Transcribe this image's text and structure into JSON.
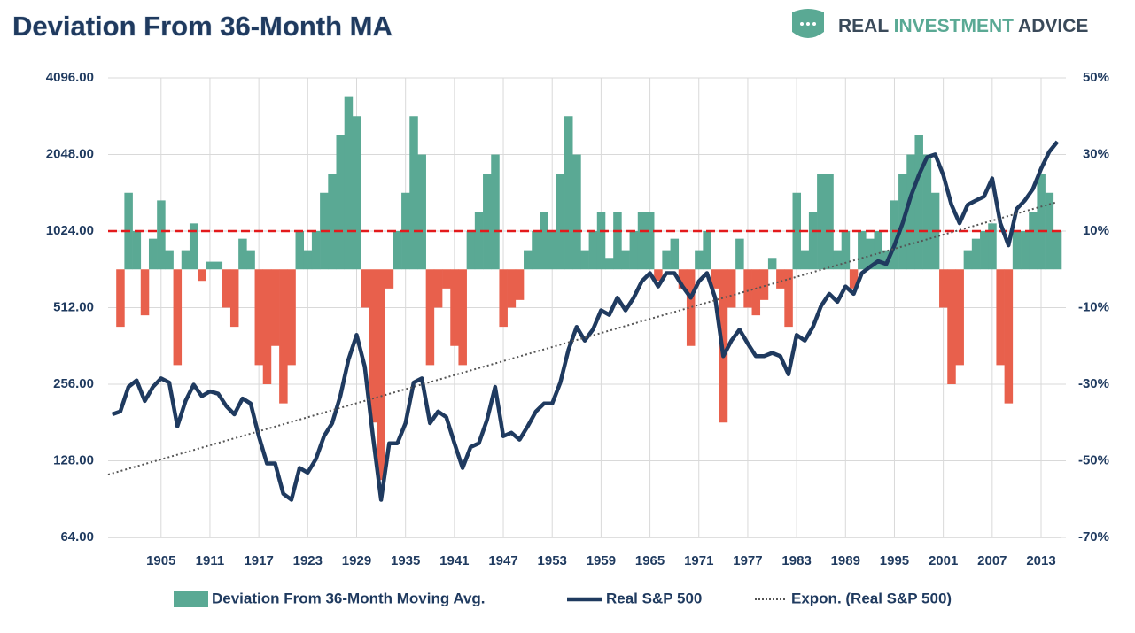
{
  "chart_data": {
    "type": "combo",
    "title": "Deviation From 36-Month MA",
    "brand": [
      "REAL",
      "INVESTMENT",
      "ADVICE"
    ],
    "xlim": [
      1898.5,
      2015.5
    ],
    "xticks": [
      1905,
      1911,
      1917,
      1923,
      1929,
      1935,
      1941,
      1947,
      1953,
      1959,
      1965,
      1971,
      1977,
      1983,
      1989,
      1995,
      2001,
      2007,
      2013
    ],
    "ylim": [
      64,
      4096
    ],
    "log_scale": true,
    "yticks": [
      {
        "value": 64,
        "label": "64.00"
      },
      {
        "value": 128,
        "label": "128.00"
      },
      {
        "value": 256,
        "label": "256.00"
      },
      {
        "value": 512,
        "label": "512.00"
      },
      {
        "value": 1024,
        "label": "1024.00"
      },
      {
        "value": 2048,
        "label": "2048.00"
      },
      {
        "value": 4096,
        "label": "4096.00"
      }
    ],
    "y2lim": [
      -70,
      50
    ],
    "y2ticks": [
      {
        "value": -70,
        "label": "-70%"
      },
      {
        "value": -50,
        "label": "-50%"
      },
      {
        "value": -30,
        "label": "-30%"
      },
      {
        "value": -10,
        "label": "-10%"
      },
      {
        "value": 10,
        "label": "10%"
      },
      {
        "value": 30,
        "label": "30%"
      },
      {
        "value": 50,
        "label": "50%"
      }
    ],
    "grid": true,
    "reference_line": {
      "value": 10,
      "axis": "y2",
      "color": "#e31a1c"
    },
    "x": [
      1899,
      1900,
      1901,
      1902,
      1903,
      1904,
      1905,
      1906,
      1907,
      1908,
      1909,
      1910,
      1911,
      1912,
      1913,
      1914,
      1915,
      1916,
      1917,
      1918,
      1919,
      1920,
      1921,
      1922,
      1923,
      1924,
      1925,
      1926,
      1927,
      1928,
      1929,
      1930,
      1931,
      1932,
      1933,
      1934,
      1935,
      1936,
      1937,
      1938,
      1939,
      1940,
      1941,
      1942,
      1943,
      1944,
      1945,
      1946,
      1947,
      1948,
      1949,
      1950,
      1951,
      1952,
      1953,
      1954,
      1955,
      1956,
      1957,
      1958,
      1959,
      1960,
      1961,
      1962,
      1963,
      1964,
      1965,
      1966,
      1967,
      1968,
      1969,
      1970,
      1971,
      1972,
      1973,
      1974,
      1975,
      1976,
      1977,
      1978,
      1979,
      1980,
      1981,
      1982,
      1983,
      1984,
      1985,
      1986,
      1987,
      1988,
      1989,
      1990,
      1991,
      1992,
      1993,
      1994,
      1995,
      1996,
      1997,
      1998,
      1999,
      2000,
      2001,
      2002,
      2003,
      2004,
      2005,
      2006,
      2007,
      2008,
      2009,
      2010,
      2011,
      2012,
      2013,
      2014,
      2015
    ],
    "series": [
      {
        "name": "Deviation From 36-Month Moving Avg.",
        "type": "bar",
        "axis": "y2",
        "color": "#5aa994",
        "negative_color": "#e8604c",
        "values": [
          0,
          -15,
          20,
          10,
          -12,
          8,
          18,
          5,
          -25,
          5,
          12,
          -3,
          2,
          2,
          -10,
          -15,
          8,
          5,
          -25,
          -30,
          -20,
          -35,
          -25,
          10,
          5,
          10,
          20,
          25,
          35,
          45,
          40,
          -10,
          -40,
          -55,
          -5,
          10,
          20,
          40,
          30,
          -25,
          -10,
          -5,
          -20,
          -25,
          10,
          15,
          25,
          30,
          -15,
          -10,
          -8,
          5,
          10,
          15,
          10,
          25,
          40,
          30,
          5,
          10,
          15,
          3,
          15,
          5,
          10,
          15,
          15,
          -3,
          5,
          8,
          -5,
          -20,
          5,
          10,
          -5,
          -40,
          -10,
          8,
          -10,
          -12,
          -8,
          3,
          -5,
          -15,
          20,
          5,
          15,
          25,
          25,
          5,
          10,
          -5,
          10,
          8,
          10,
          5,
          18,
          25,
          30,
          35,
          30,
          20,
          -10,
          -30,
          -25,
          5,
          8,
          10,
          12,
          -25,
          -35,
          10,
          10,
          15,
          25,
          20,
          10
        ]
      },
      {
        "name": "Real S&P 500",
        "type": "line",
        "color": "#1f3a5f",
        "values": [
          195,
          200,
          250,
          265,
          220,
          250,
          270,
          260,
          175,
          220,
          255,
          230,
          240,
          235,
          210,
          195,
          225,
          215,
          160,
          125,
          125,
          95,
          90,
          120,
          115,
          130,
          160,
          180,
          230,
          320,
          400,
          300,
          160,
          90,
          150,
          150,
          180,
          260,
          270,
          180,
          200,
          190,
          150,
          120,
          145,
          150,
          185,
          250,
          160,
          165,
          155,
          175,
          200,
          215,
          215,
          260,
          350,
          430,
          380,
          420,
          500,
          480,
          560,
          500,
          560,
          650,
          700,
          620,
          700,
          700,
          620,
          560,
          650,
          700,
          560,
          330,
          380,
          420,
          370,
          330,
          330,
          340,
          330,
          280,
          400,
          380,
          430,
          520,
          580,
          540,
          620,
          580,
          700,
          740,
          780,
          760,
          900,
          1100,
          1400,
          1700,
          2000,
          2050,
          1700,
          1300,
          1100,
          1300,
          1350,
          1400,
          1650,
          1100,
          900,
          1250,
          1350,
          1500,
          1800,
          2100,
          2300
        ]
      },
      {
        "name": "Expon. (Real S&P 500)",
        "type": "trend",
        "color": "#555555",
        "x": [
          1898.5,
          2015
        ],
        "values": [
          113,
          1333
        ]
      }
    ]
  }
}
